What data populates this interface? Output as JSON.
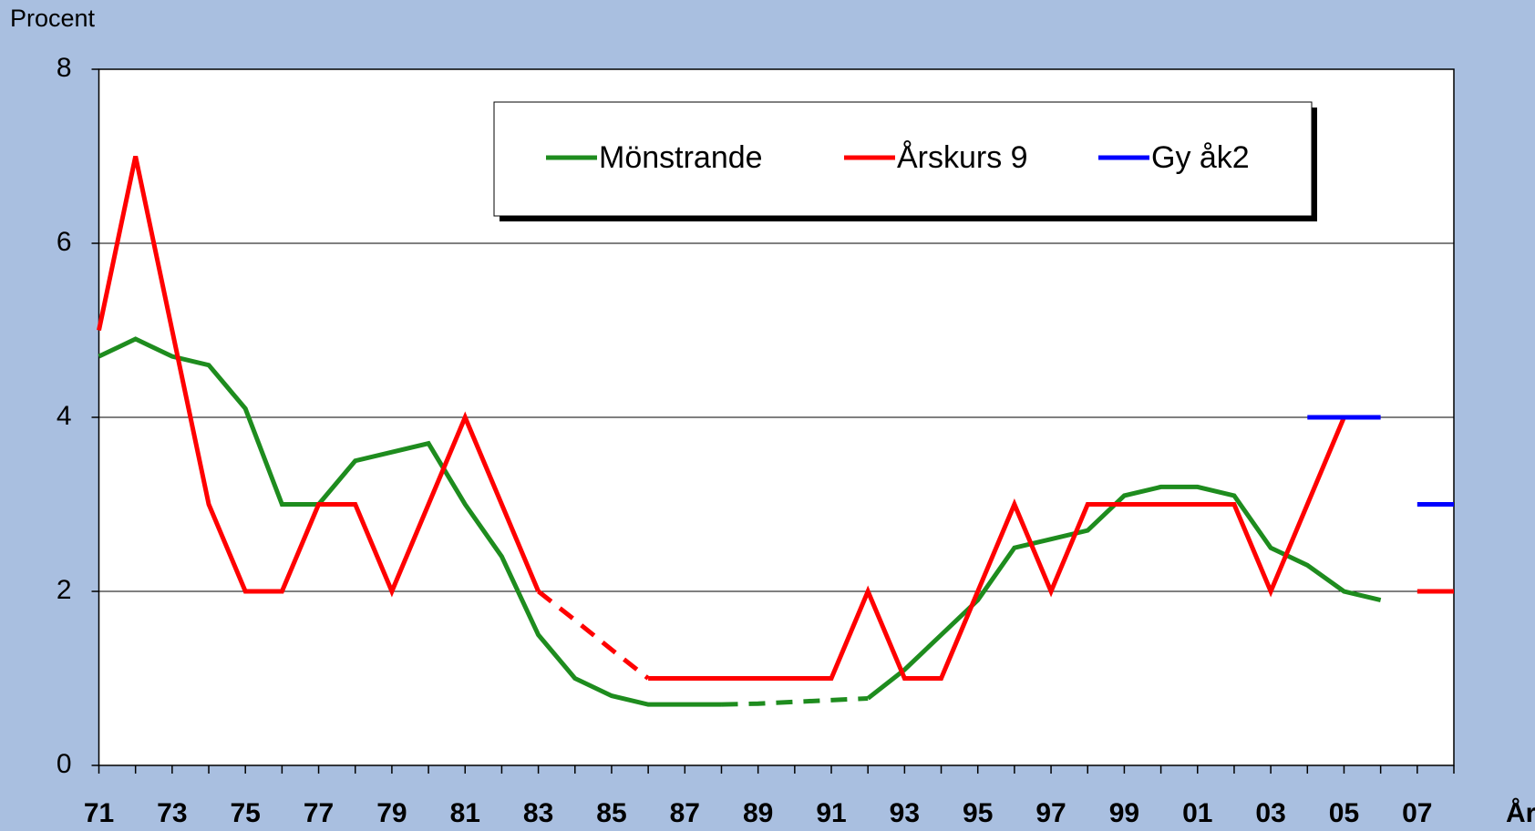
{
  "chart_data": {
    "type": "line",
    "y_label": "Procent",
    "x_label": "År",
    "categories": [
      "71",
      null,
      "73",
      null,
      "75",
      null,
      "77",
      null,
      "79",
      null,
      "81",
      null,
      "83",
      null,
      "85",
      null,
      "87",
      null,
      "89",
      null,
      "91",
      null,
      "93",
      null,
      "95",
      null,
      "97",
      null,
      "99",
      null,
      "01",
      null,
      "03",
      null,
      "05",
      null,
      "07",
      null
    ],
    "series": [
      {
        "name": "Mönstrande",
        "color": "#1e8c1e",
        "values": [
          4.7,
          4.9,
          4.7,
          4.6,
          4.1,
          3.0,
          3.0,
          3.5,
          3.6,
          3.7,
          3.0,
          2.4,
          1.5,
          1.0,
          0.8,
          0.7,
          0.7,
          0.7,
          0.71,
          0.73,
          0.75,
          0.77,
          1.1,
          1.5,
          1.9,
          2.5,
          2.6,
          2.7,
          3.1,
          3.2,
          3.2,
          3.1,
          2.5,
          2.3,
          2.0,
          1.9,
          null,
          null
        ],
        "dashed": [
          [
            17,
            21
          ]
        ]
      },
      {
        "name": "Årskurs 9",
        "color": "#ff0000",
        "values": [
          5,
          7,
          5,
          3,
          2,
          2,
          3,
          3,
          2,
          3,
          4,
          3,
          2,
          1.67,
          1.33,
          1,
          1,
          1,
          1,
          1,
          1,
          2,
          1,
          1,
          2,
          3,
          2,
          3,
          3,
          3,
          3,
          3,
          2,
          3,
          4,
          null,
          2,
          2
        ],
        "dashed": [
          [
            12,
            15
          ]
        ]
      },
      {
        "name": "Gy åk2",
        "color": "#0000ff",
        "values": [
          null,
          null,
          null,
          null,
          null,
          null,
          null,
          null,
          null,
          null,
          null,
          null,
          null,
          null,
          null,
          null,
          null,
          null,
          null,
          null,
          null,
          null,
          null,
          null,
          null,
          null,
          null,
          null,
          null,
          null,
          null,
          null,
          null,
          4,
          4,
          4,
          3,
          3
        ],
        "breaks": [
          35
        ]
      }
    ],
    "ylim": [
      0,
      8
    ],
    "yticks": [
      0,
      2,
      4,
      6,
      8
    ],
    "grid": true
  }
}
